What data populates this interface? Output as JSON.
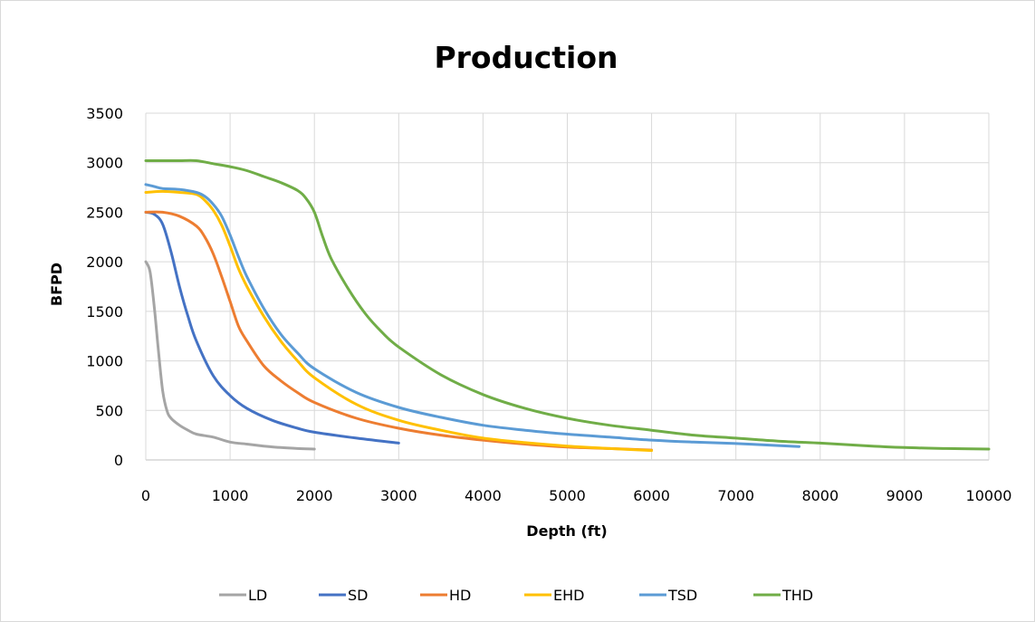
{
  "chart_data": {
    "type": "line",
    "title": "Production",
    "xlabel": "Depth (ft)",
    "ylabel": "BFPD",
    "xlim": [
      0,
      10000
    ],
    "ylim": [
      0,
      3500
    ],
    "xticks": [
      0,
      1000,
      2000,
      3000,
      4000,
      5000,
      6000,
      7000,
      8000,
      9000,
      10000
    ],
    "yticks": [
      0,
      500,
      1000,
      1500,
      2000,
      2500,
      3000,
      3500
    ],
    "grid": true,
    "legend_position": "bottom",
    "series": [
      {
        "name": "LD",
        "color": "#a5a5a5",
        "x": [
          0,
          50,
          100,
          150,
          200,
          250,
          300,
          400,
          500,
          600,
          800,
          1000,
          1200,
          1400,
          1600,
          1800,
          2000
        ],
        "y": [
          2000,
          1900,
          1550,
          1100,
          700,
          500,
          420,
          350,
          300,
          260,
          230,
          180,
          160,
          140,
          125,
          115,
          110
        ]
      },
      {
        "name": "SD",
        "color": "#4472c4",
        "x": [
          0,
          100,
          200,
          300,
          400,
          500,
          600,
          800,
          1000,
          1200,
          1500,
          1800,
          2000,
          2500,
          3000
        ],
        "y": [
          2500,
          2480,
          2380,
          2100,
          1750,
          1450,
          1200,
          850,
          650,
          520,
          400,
          320,
          280,
          220,
          170
        ]
      },
      {
        "name": "HD",
        "color": "#ed7d31",
        "x": [
          0,
          200,
          400,
          600,
          700,
          800,
          900,
          1000,
          1100,
          1200,
          1400,
          1600,
          1800,
          2000,
          2500,
          3000,
          3500,
          4000,
          4500,
          5000,
          5500,
          6000
        ],
        "y": [
          2500,
          2500,
          2460,
          2360,
          2250,
          2080,
          1850,
          1600,
          1350,
          1200,
          950,
          800,
          680,
          580,
          420,
          320,
          250,
          200,
          160,
          130,
          115,
          100
        ]
      },
      {
        "name": "EHD",
        "color": "#ffc000",
        "x": [
          0,
          200,
          400,
          600,
          700,
          800,
          900,
          1000,
          1100,
          1200,
          1400,
          1600,
          1800,
          2000,
          2500,
          3000,
          3500,
          4000,
          4500,
          5000,
          5500,
          6000
        ],
        "y": [
          2700,
          2710,
          2700,
          2680,
          2620,
          2520,
          2370,
          2160,
          1930,
          1750,
          1450,
          1200,
          1000,
          830,
          560,
          400,
          300,
          220,
          175,
          140,
          115,
          95
        ]
      },
      {
        "name": "TSD",
        "color": "#5b9bd5",
        "x": [
          0,
          100,
          200,
          400,
          600,
          700,
          800,
          900,
          1000,
          1100,
          1200,
          1400,
          1600,
          1800,
          2000,
          2500,
          3000,
          3500,
          4000,
          4500,
          5000,
          5500,
          6000,
          6500,
          7000,
          7500,
          7750
        ],
        "y": [
          2780,
          2760,
          2740,
          2730,
          2700,
          2660,
          2580,
          2460,
          2270,
          2050,
          1850,
          1530,
          1270,
          1080,
          920,
          680,
          530,
          430,
          350,
          300,
          260,
          230,
          200,
          180,
          165,
          145,
          135
        ]
      },
      {
        "name": "THD",
        "color": "#70ad47",
        "x": [
          0,
          200,
          400,
          600,
          800,
          1000,
          1200,
          1400,
          1600,
          1800,
          1900,
          2000,
          2100,
          2200,
          2400,
          2600,
          2800,
          3000,
          3500,
          4000,
          4500,
          5000,
          5500,
          6000,
          6500,
          7000,
          7500,
          8000,
          8500,
          9000,
          9500,
          10000
        ],
        "y": [
          3020,
          3020,
          3020,
          3020,
          2990,
          2960,
          2920,
          2860,
          2800,
          2720,
          2640,
          2500,
          2250,
          2030,
          1730,
          1480,
          1290,
          1140,
          860,
          660,
          520,
          420,
          350,
          300,
          250,
          220,
          190,
          170,
          145,
          125,
          115,
          110
        ]
      }
    ]
  }
}
